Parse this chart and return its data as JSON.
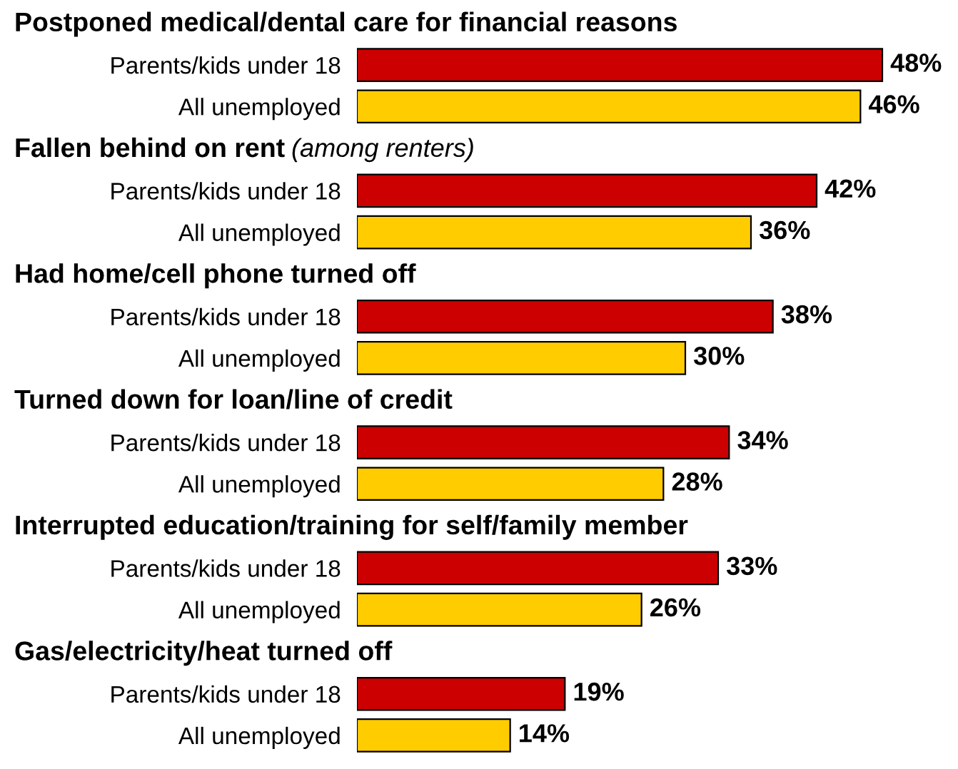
{
  "chart_data": [
    {
      "type": "bar",
      "orientation": "horizontal",
      "title": "Postponed medical/dental care for financial reasons",
      "categories": [
        "Parents/kids under 18",
        "All unemployed"
      ],
      "values": [
        48,
        46
      ],
      "colors": [
        "#cc0000",
        "#ffcc00"
      ],
      "value_labels": [
        "48%",
        "46%"
      ]
    },
    {
      "type": "bar",
      "orientation": "horizontal",
      "title": "Fallen behind on rent",
      "subtitle": "(among renters)",
      "categories": [
        "Parents/kids under 18",
        "All unemployed"
      ],
      "values": [
        42,
        36
      ],
      "colors": [
        "#cc0000",
        "#ffcc00"
      ],
      "value_labels": [
        "42%",
        "36%"
      ]
    },
    {
      "type": "bar",
      "orientation": "horizontal",
      "title": "Had home/cell phone turned off",
      "categories": [
        "Parents/kids under 18",
        "All unemployed"
      ],
      "values": [
        38,
        30
      ],
      "colors": [
        "#cc0000",
        "#ffcc00"
      ],
      "value_labels": [
        "38%",
        "30%"
      ]
    },
    {
      "type": "bar",
      "orientation": "horizontal",
      "title": "Turned down for loan/line of credit",
      "categories": [
        "Parents/kids under 18",
        "All unemployed"
      ],
      "values": [
        34,
        28
      ],
      "colors": [
        "#cc0000",
        "#ffcc00"
      ],
      "value_labels": [
        "34%",
        "28%"
      ]
    },
    {
      "type": "bar",
      "orientation": "horizontal",
      "title": "Interrupted education/training for self/family member",
      "categories": [
        "Parents/kids under 18",
        "All unemployed"
      ],
      "values": [
        33,
        26
      ],
      "colors": [
        "#cc0000",
        "#ffcc00"
      ],
      "value_labels": [
        "33%",
        "26%"
      ]
    },
    {
      "type": "bar",
      "orientation": "horizontal",
      "title": "Gas/electricity/heat turned off",
      "categories": [
        "Parents/kids under 18",
        "All unemployed"
      ],
      "values": [
        19,
        14
      ],
      "colors": [
        "#cc0000",
        "#ffcc00"
      ],
      "value_labels": [
        "19%",
        "14%"
      ]
    }
  ]
}
